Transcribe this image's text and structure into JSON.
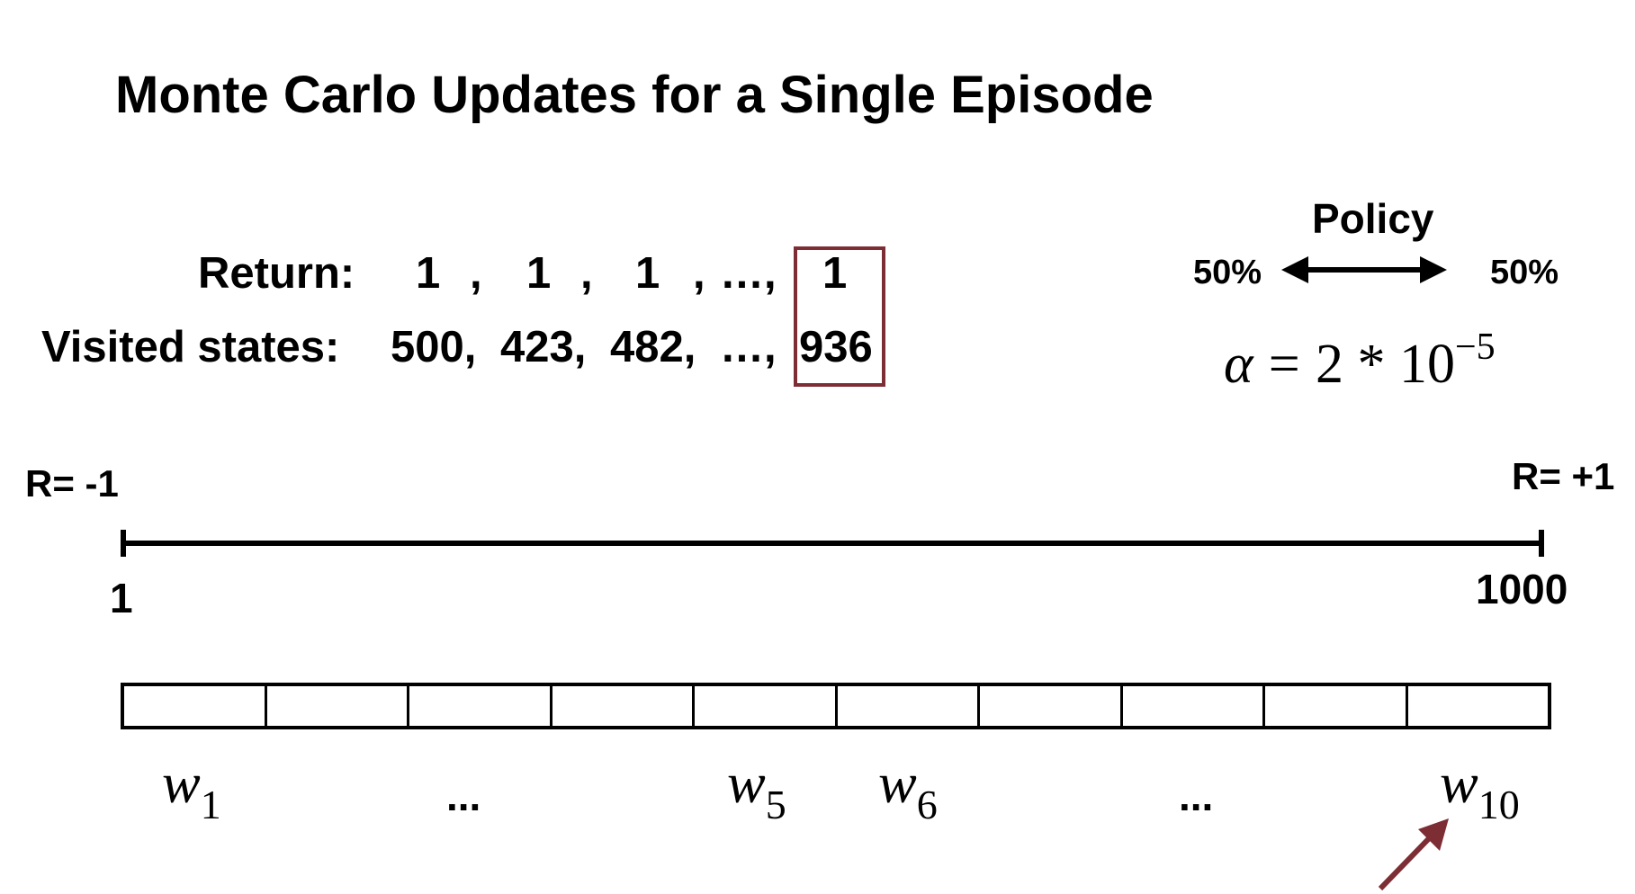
{
  "title": "Monte Carlo Updates for a Single Episode",
  "returns": {
    "label": "Return:",
    "values": [
      "1",
      "1",
      "1",
      "1"
    ],
    "ellipsis": "…,",
    "highlighted": "1"
  },
  "visited": {
    "label": "Visited states:",
    "values": [
      "500,",
      "423,",
      "482,"
    ],
    "ellipsis": "…,",
    "highlighted": "936"
  },
  "policy": {
    "label": "Policy",
    "left_prob": "50%",
    "right_prob": "50%"
  },
  "alpha": {
    "symbol": "α",
    "equals": "=",
    "value": "2 * 10",
    "exponent": "−5"
  },
  "number_line": {
    "left_reward": "R= -1",
    "right_reward": "R= +1",
    "start": "1",
    "end": "1000"
  },
  "tiles": {
    "count": 10,
    "labels": [
      {
        "symbol": "w",
        "sub": "1"
      },
      {
        "symbol": "w",
        "sub": "5"
      },
      {
        "symbol": "w",
        "sub": "6"
      },
      {
        "symbol": "w",
        "sub": "10"
      }
    ],
    "ellipsis": "..."
  },
  "colors": {
    "highlight": "#7d2e35",
    "arrow": "#7d2e35"
  }
}
